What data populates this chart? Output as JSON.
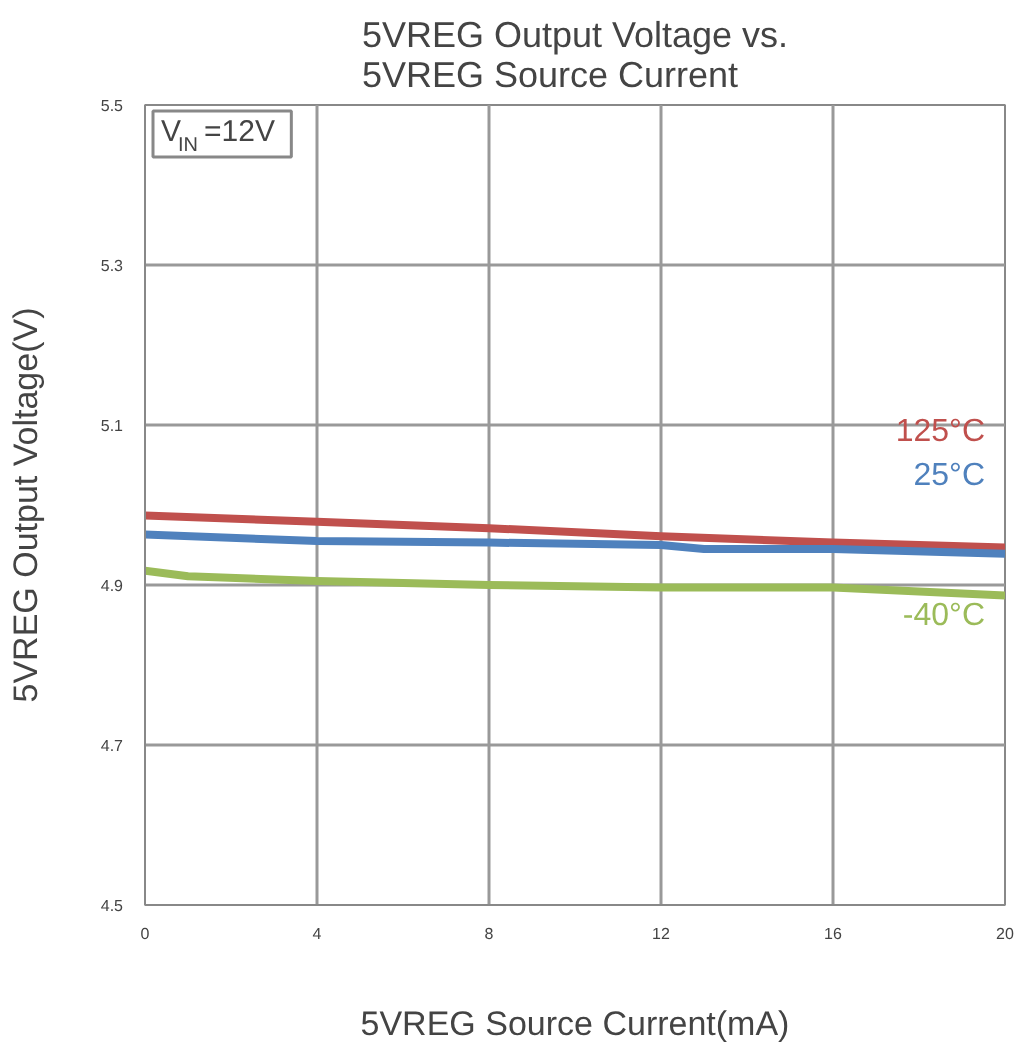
{
  "chart_data": {
    "type": "line",
    "title": "5VREG Output Voltage vs.\n5VREG Source Current",
    "xlabel": "5VREG Source Current(mA)",
    "ylabel": "5VREG Output Voltage(V)",
    "annotations": [
      "V$_{IN}$=12V"
    ],
    "xlim": [
      0,
      20
    ],
    "xticks": [
      0,
      4,
      8,
      12,
      16,
      20
    ],
    "ylim": [
      4.5,
      5.5
    ],
    "yticks": [
      4.5,
      4.7,
      4.9,
      5.1,
      5.3,
      5.5
    ],
    "grid": true,
    "series": [
      {
        "name": "125°C",
        "color": "#c0504d",
        "x": [
          0,
          4,
          8,
          12,
          16,
          20
        ],
        "values": [
          4.987,
          4.979,
          4.971,
          4.961,
          4.953,
          4.947
        ]
      },
      {
        "name": "25°C",
        "color": "#4f81bd",
        "x": [
          0,
          4,
          8,
          12,
          13,
          16,
          20
        ],
        "values": [
          4.963,
          4.955,
          4.953,
          4.95,
          4.945,
          4.945,
          4.939
        ]
      },
      {
        "name": "-40°C",
        "color": "#9bbb59",
        "x": [
          0,
          1,
          4,
          8,
          12,
          16,
          20
        ],
        "values": [
          4.918,
          4.911,
          4.905,
          4.9,
          4.897,
          4.897,
          4.887
        ]
      }
    ]
  }
}
